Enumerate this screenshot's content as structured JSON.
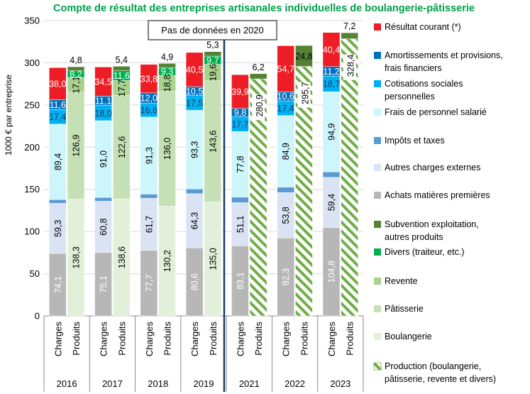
{
  "chart_data": {
    "type": "bar",
    "stacked": true,
    "title": "Compte de résultat des entreprises artisanales individuelles de boulangerie-pâtisserie",
    "ylabel": "1000 € par entreprise",
    "ylim": [
      0,
      350
    ],
    "yticks": [
      0,
      50,
      100,
      150,
      200,
      250,
      300,
      350
    ],
    "annotation": "Pas de données en 2020",
    "bar_label_charges": "Charges",
    "bar_label_produits": "Produits",
    "legend_position": "right",
    "colors": {
      "resultat": "#ee1c25",
      "amortissements": "#0070c0",
      "cotisations": "#00b0f0",
      "personnel": "#ccf5fc",
      "impots": "#5b9bd5",
      "autres_charges": "#dae3f3",
      "achats": "#b7b7b7",
      "subvention": "#548235",
      "divers": "#00b050",
      "revente": "#a9d18e",
      "patisserie": "#c5e0b4",
      "boulangerie": "#e2f0d9",
      "production": "#70ad47",
      "divider": "#1f3864"
    },
    "series_charges": [
      {
        "key": "achats",
        "name": "Achats matières premières"
      },
      {
        "key": "autres_charges",
        "name": "Autres charges externes"
      },
      {
        "key": "impots",
        "name": "Impôts et taxes"
      },
      {
        "key": "personnel",
        "name": "Frais de personnel salarié"
      },
      {
        "key": "cotisations",
        "name": "Cotisations sociales personnelles"
      },
      {
        "key": "amortissements",
        "name": "Amortissements et provisions, frais financiers"
      },
      {
        "key": "resultat",
        "name": "Résultat courant (*)"
      }
    ],
    "series_produits": [
      {
        "key": "boulangerie",
        "name": "Boulangerie"
      },
      {
        "key": "patisserie",
        "name": "Pâtisserie"
      },
      {
        "key": "revente",
        "name": "Revente"
      },
      {
        "key": "production",
        "name": "Production (boulangerie, pâtisserie, revente et divers)"
      },
      {
        "key": "divers",
        "name": "Divers (traiteur, etc.)"
      },
      {
        "key": "subvention",
        "name": "Subvention exploitation, autres produits"
      }
    ],
    "years": [
      {
        "year": "2016",
        "charges": {
          "achats": 74.1,
          "autres_charges": 59.3,
          "impots": 4.5,
          "personnel": 89.4,
          "cotisations": 17.4,
          "amortissements": 11.6,
          "resultat": 38.0
        },
        "produits": {
          "boulangerie": 138.3,
          "patisserie": 126.9,
          "revente": 17.1,
          "divers": 8.2,
          "subvention": 4.8
        }
      },
      {
        "year": "2017",
        "charges": {
          "achats": 75.1,
          "autres_charges": 60.8,
          "impots": 4.5,
          "personnel": 91.0,
          "cotisations": 18.0,
          "amortissements": 11.1,
          "resultat": 34.5
        },
        "produits": {
          "boulangerie": 138.6,
          "patisserie": 122.6,
          "revente": 17.7,
          "divers": 11.6,
          "subvention": 5.4
        }
      },
      {
        "year": "2018",
        "charges": {
          "achats": 77.7,
          "autres_charges": 61.7,
          "impots": 5.0,
          "personnel": 91.3,
          "cotisations": 16.6,
          "amortissements": 12.0,
          "resultat": 33.8
        },
        "produits": {
          "boulangerie": 130.2,
          "patisserie": 136.0,
          "revente": 18.8,
          "divers": 9.3,
          "subvention": 4.9
        }
      },
      {
        "year": "2019",
        "charges": {
          "achats": 80.6,
          "autres_charges": 64.3,
          "impots": 5.5,
          "personnel": 93.3,
          "cotisations": 17.5,
          "amortissements": 10.5,
          "resultat": 40.5
        },
        "produits": {
          "boulangerie": 135.0,
          "patisserie": 143.6,
          "revente": 19.6,
          "divers": 9.7,
          "subvention": 5.3
        }
      },
      {
        "year": "2021",
        "charges": {
          "achats": 83.1,
          "autres_charges": 51.1,
          "impots": 6.5,
          "personnel": 77.8,
          "cotisations": 17.7,
          "amortissements": 9.8,
          "resultat": 39.9
        },
        "produits": {
          "production": 280.9,
          "subvention": 6.2
        }
      },
      {
        "year": "2022",
        "charges": {
          "achats": 92.3,
          "autres_charges": 53.8,
          "impots": 6.5,
          "personnel": 84.9,
          "cotisations": 17.4,
          "amortissements": 10.6,
          "resultat": 54.7
        },
        "produits": {
          "production": 295.7,
          "subvention": 24.8
        }
      },
      {
        "year": "2023",
        "charges": {
          "achats": 104.8,
          "autres_charges": 59.4,
          "impots": 6.5,
          "personnel": 94.9,
          "cotisations": 18.7,
          "amortissements": 11.2,
          "resultat": 40.4
        },
        "produits": {
          "production": 328.4,
          "subvention": 7.2
        }
      }
    ],
    "hidden_labels": [
      "impots"
    ],
    "legend": [
      {
        "key": "resultat",
        "lines": [
          "Résultat courant (*)"
        ]
      },
      {
        "key": "amortissements",
        "lines": [
          "Amortissements et provisions,",
          "frais financiers"
        ]
      },
      {
        "key": "cotisations",
        "lines": [
          "Cotisations sociales",
          "personnelles"
        ]
      },
      {
        "key": "personnel",
        "lines": [
          "Frais de personnel salarié"
        ]
      },
      {
        "key": "impots",
        "lines": [
          "Impôts et taxes"
        ]
      },
      {
        "key": "autres_charges",
        "lines": [
          "Autres charges externes"
        ]
      },
      {
        "key": "achats",
        "lines": [
          "Achats matières premières"
        ]
      },
      {
        "key": "subvention",
        "lines": [
          "Subvention exploitation,",
          "autres produits"
        ]
      },
      {
        "key": "divers",
        "lines": [
          "Divers (traiteur, etc.)"
        ]
      },
      {
        "key": "revente",
        "lines": [
          "Revente"
        ]
      },
      {
        "key": "patisserie",
        "lines": [
          "Pâtisserie"
        ]
      },
      {
        "key": "boulangerie",
        "lines": [
          "Boulangerie"
        ]
      },
      {
        "key": "production",
        "lines": [
          "Production (boulangerie,",
          "pâtisserie, revente et divers)"
        ]
      }
    ]
  }
}
